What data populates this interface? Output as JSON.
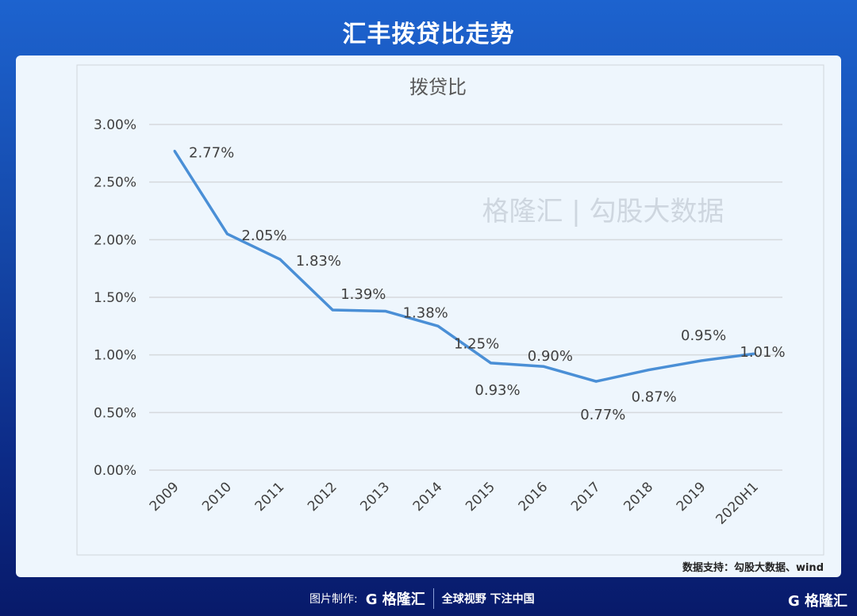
{
  "header": {
    "title": "汇丰拨贷比走势"
  },
  "watermark": "格隆汇 | 勾股大数据",
  "source": "数据支持：勾股大数据、wind",
  "footer": {
    "made_by": "图片制作:",
    "logo": "G 格隆汇",
    "slogan": "全球视野 下注中国",
    "logo_right": "G 格隆汇"
  },
  "colors": {
    "line": "#4a8fd6",
    "grid": "#d5d9dd"
  },
  "chart_data": {
    "type": "line",
    "title": "拨贷比",
    "categories": [
      "2009",
      "2010",
      "2011",
      "2012",
      "2013",
      "2014",
      "2015",
      "2016",
      "2017",
      "2018",
      "2019",
      "2020H1"
    ],
    "series": [
      {
        "name": "拨贷比",
        "values": [
          2.77,
          2.05,
          1.83,
          1.39,
          1.38,
          1.25,
          0.93,
          0.9,
          0.77,
          0.87,
          0.95,
          1.01
        ]
      }
    ],
    "data_labels": [
      "2.77%",
      "2.05%",
      "1.83%",
      "1.39%",
      "1.38%",
      "1.25%",
      "0.93%",
      "0.90%",
      "0.77%",
      "0.87%",
      "0.95%",
      "1.01%"
    ],
    "yticks": [
      "0.00%",
      "0.50%",
      "1.00%",
      "1.50%",
      "2.00%",
      "2.50%",
      "3.00%"
    ],
    "ylim": [
      0,
      3.0
    ],
    "grid": true,
    "legend": "none"
  }
}
